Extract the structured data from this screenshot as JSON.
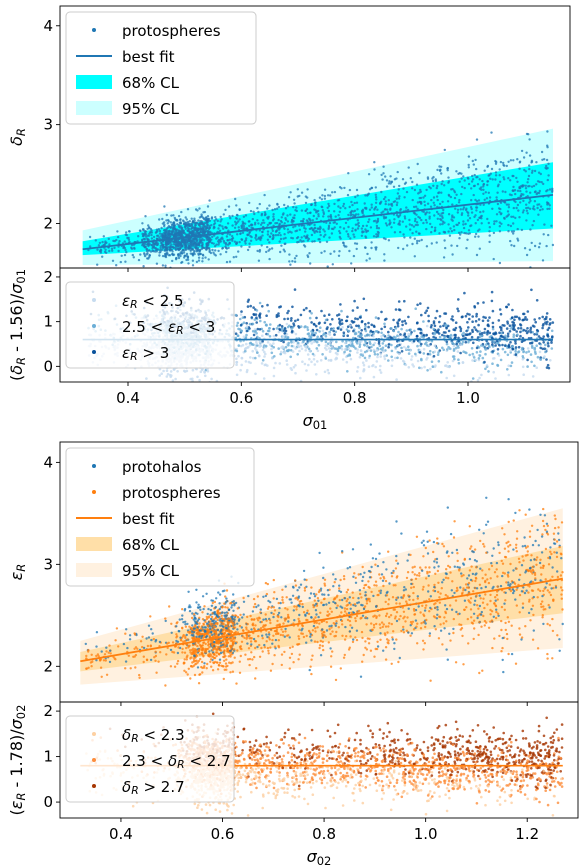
{
  "chart_data": [
    {
      "type": "scatter",
      "panel": "top-main",
      "ylabel": "δ_R",
      "ylim": [
        1.55,
        4.2
      ],
      "xlim": [
        0.28,
        1.18
      ],
      "yticks": [
        "2",
        "3",
        "4"
      ],
      "legend": {
        "placement": "top-left",
        "entries": [
          "protospheres",
          "best fit",
          "68% CL",
          "95% CL"
        ]
      },
      "best_fit": {
        "x": [
          0.32,
          1.15
        ],
        "y": [
          1.74,
          2.29
        ]
      },
      "band68": {
        "x": [
          0.32,
          1.15
        ],
        "lower": [
          1.68,
          1.95
        ],
        "upper": [
          1.82,
          2.62
        ]
      },
      "band95": {
        "x": [
          0.32,
          1.15
        ],
        "lower": [
          1.58,
          1.62
        ],
        "upper": [
          1.93,
          2.96
        ]
      },
      "colors": {
        "points": "#1f77b4",
        "fit": "#1f77b4",
        "band68": "#00ffff",
        "band95": "#ccffff"
      }
    },
    {
      "type": "scatter",
      "panel": "top-residual",
      "ylabel": "(δ_R - 1.56)/σ_01",
      "xlabel": "σ_01",
      "ylim": [
        -0.35,
        2.2
      ],
      "xlim": [
        0.28,
        1.18
      ],
      "yticks": [
        "0",
        "1",
        "2"
      ],
      "xticks": [
        "0.4",
        "0.6",
        "0.8",
        "1.0"
      ],
      "fit_level": 0.6,
      "legend": {
        "placement": "bottom-left",
        "entries": [
          "ε_R < 2.5",
          "2.5 < ε_R < 3",
          "ε_R > 3"
        ]
      },
      "colors": {
        "low": "#c6dbef",
        "mid": "#6baed6",
        "high": "#08519c",
        "fit": "#1f77b4"
      }
    },
    {
      "type": "scatter",
      "panel": "bottom-main",
      "ylabel": "ε_R",
      "ylim": [
        1.65,
        4.2
      ],
      "xlim": [
        0.28,
        1.3
      ],
      "yticks": [
        "2",
        "3",
        "4"
      ],
      "legend": {
        "placement": "top-left",
        "entries": [
          "protohalos",
          "protospheres",
          "best fit",
          "68% CL",
          "95% CL"
        ]
      },
      "best_fit": {
        "x": [
          0.32,
          1.27
        ],
        "y": [
          2.05,
          2.86
        ]
      },
      "band68": {
        "x": [
          0.32,
          1.27
        ],
        "lower": [
          1.95,
          2.52
        ],
        "upper": [
          2.14,
          3.18
        ]
      },
      "band95": {
        "x": [
          0.32,
          1.27
        ],
        "lower": [
          1.82,
          2.18
        ],
        "upper": [
          2.25,
          3.55
        ]
      },
      "colors": {
        "protohalos": "#1f77b4",
        "protospheres": "#ff7f0e",
        "fit": "#ff7f0e",
        "band68": "#ffdfa8",
        "band95": "#fff1e0"
      }
    },
    {
      "type": "scatter",
      "panel": "bottom-residual",
      "ylabel": "(ε_R - 1.78)/σ_02",
      "xlabel": "σ_02",
      "ylim": [
        -0.35,
        2.2
      ],
      "xlim": [
        0.28,
        1.3
      ],
      "yticks": [
        "0",
        "1",
        "2"
      ],
      "xticks": [
        "0.4",
        "0.6",
        "0.8",
        "1.0",
        "1.2"
      ],
      "fit_level": 0.8,
      "legend": {
        "placement": "bottom-left",
        "entries": [
          "δ_R < 2.3",
          "2.3 < δ_R < 2.7",
          "δ_R > 2.7"
        ]
      },
      "colors": {
        "low": "#fdd0a2",
        "mid": "#fd8d3c",
        "high": "#a63603",
        "fit": "#ff7f0e"
      }
    }
  ]
}
